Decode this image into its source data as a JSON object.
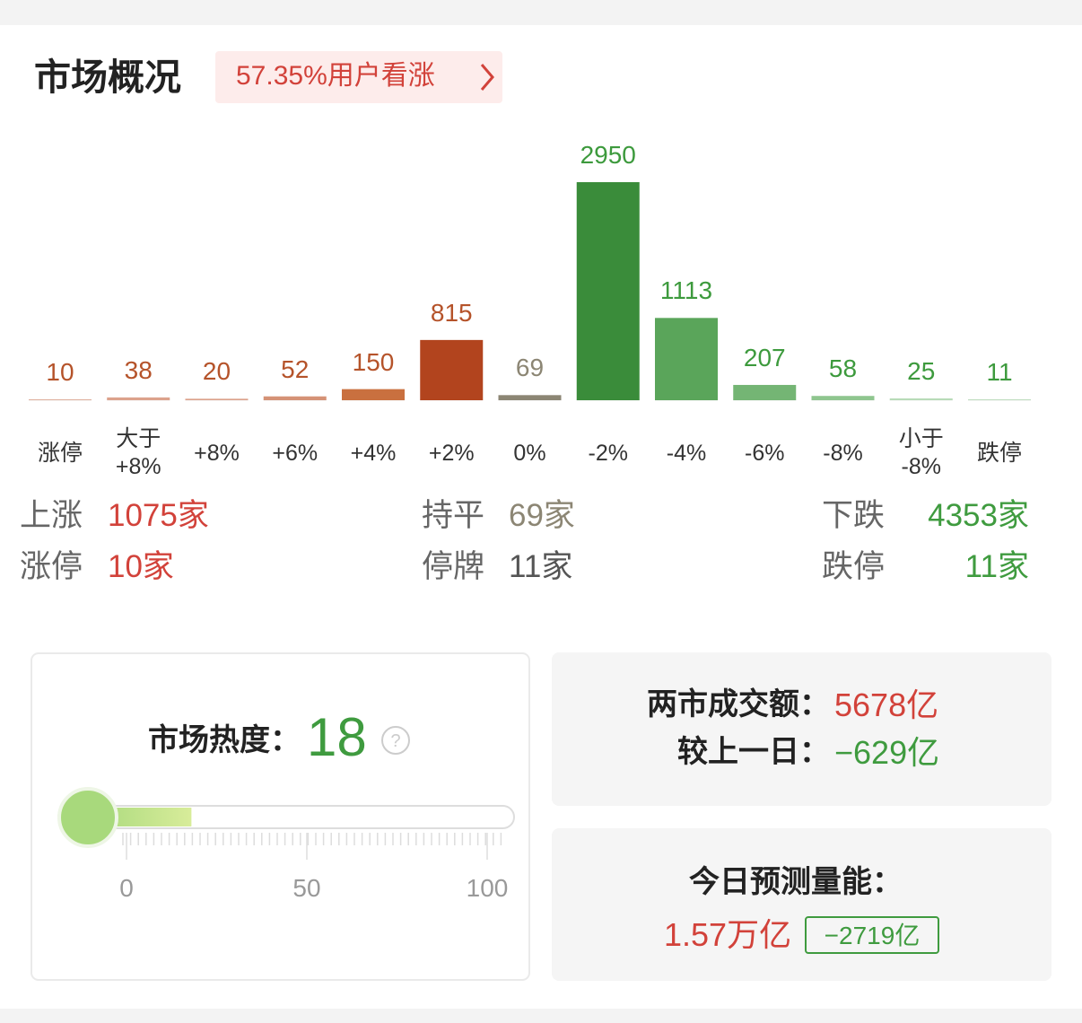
{
  "header": {
    "title": "市场概况",
    "badge": "57.35%用户看涨"
  },
  "chart_data": {
    "type": "bar",
    "categories": [
      "涨停",
      "大于\n+8%",
      "+8%",
      "+6%",
      "+4%",
      "+2%",
      "0%",
      "-2%",
      "-4%",
      "-6%",
      "-8%",
      "小于\n-8%",
      "跌停"
    ],
    "values": [
      10,
      38,
      20,
      52,
      150,
      815,
      69,
      2950,
      1113,
      207,
      58,
      25,
      11
    ],
    "colors": [
      "#dca28c",
      "#dca28c",
      "#dca28c",
      "#d59276",
      "#c9703f",
      "#b2441e",
      "#8c8674",
      "#3a8c3a",
      "#5aa55a",
      "#74b574",
      "#8fc68f",
      "#b8dbb8",
      "#b8dbb8"
    ],
    "label_colors": [
      "#b5532a",
      "#b5532a",
      "#b5532a",
      "#b5532a",
      "#b5532a",
      "#b5532a",
      "#8c8674",
      "#3d9a3d",
      "#3d9a3d",
      "#3d9a3d",
      "#3d9a3d",
      "#3d9a3d",
      "#3d9a3d"
    ]
  },
  "stats": {
    "columns": [
      {
        "rows": [
          {
            "label": "上涨",
            "value": "1075家"
          },
          {
            "label": "涨停",
            "value": "10家"
          }
        ]
      },
      {
        "rows": [
          {
            "label": "持平",
            "value": "69家"
          },
          {
            "label": "停牌",
            "value": "11家"
          }
        ]
      },
      {
        "rows": [
          {
            "label": "下跌",
            "value": "4353家"
          },
          {
            "label": "跌停",
            "value": "11家"
          }
        ]
      }
    ]
  },
  "heat": {
    "label": "市场热度：",
    "value": 18,
    "ticks": [
      0,
      50,
      100
    ]
  },
  "turnover": {
    "label": "两市成交额：",
    "value": "5678亿",
    "change_label": "较上一日：",
    "change": "−629亿"
  },
  "forecast": {
    "label": "今日预测量能：",
    "value": "1.57万亿",
    "change": "−2719亿"
  }
}
